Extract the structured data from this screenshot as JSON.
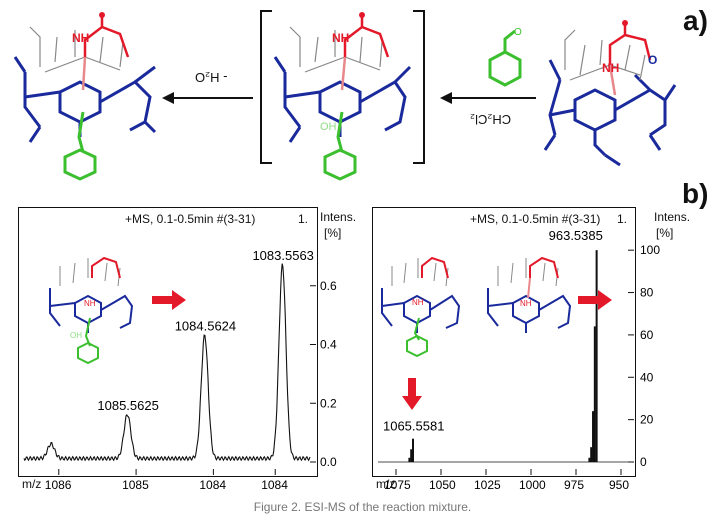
{
  "panel_a": {
    "label": "a)",
    "reagent_above": "",
    "solvent_label": "CH₂Cl₂",
    "elimination_label": "- H₂O",
    "nh_label": "NH",
    "oh_label": "OH"
  },
  "panel_b": {
    "label": "b)",
    "nh_label": "NH",
    "oh_label": "OH",
    "left_spectrum": {
      "header": "+MS, 0.1-0.5min #(3-31)",
      "ylabel": "Intens.",
      "yunit": "[%]",
      "ymax_text": "",
      "xlabel": "m/z",
      "top_right_value": "1.",
      "yticks": [
        "0.0",
        "0.2",
        "0.4",
        "0.6"
      ],
      "xticks": [
        "1086",
        "1085",
        "1084",
        "1084"
      ],
      "peaks": [
        "1083.5563",
        "1084.5624",
        "1085.5625"
      ]
    },
    "right_spectrum": {
      "header": "+MS, 0.1-0.5min #(3-31)",
      "ylabel": "Intens.",
      "yunit": "[%]",
      "xlabel": "m/z",
      "top_right_value": "1.",
      "yticks": [
        "0",
        "20",
        "40",
        "60",
        "80",
        "100"
      ],
      "xticks": [
        "950",
        "975",
        "1000",
        "1025",
        "1050",
        "1075"
      ],
      "peaks": [
        "963.5385",
        "1065.5581"
      ]
    }
  },
  "chart_data": [
    {
      "type": "line",
      "title": "+MS, 0.1-0.5min #(3-31)",
      "xlabel": "m/z",
      "ylabel": "Intens. [%]",
      "x_reversed": true,
      "ylim": [
        0,
        0.8
      ],
      "series": [
        {
          "x": [
            1083.5563,
            1084.5624,
            1085.5625,
            1086.55
          ],
          "y": [
            0.66,
            0.42,
            0.15,
            0.05
          ]
        }
      ],
      "annotations": [
        "1083.5563",
        "1084.5624",
        "1085.5625"
      ]
    },
    {
      "type": "bar",
      "title": "+MS, 0.1-0.5min #(3-31)",
      "xlabel": "m/z",
      "ylabel": "Intens. [%]",
      "x_reversed": true,
      "ylim": [
        0,
        110
      ],
      "series": [
        {
          "x": [
            963.5385,
            964.54,
            965.54,
            966.55,
            967.55,
            1065.5581,
            1066.56,
            1067.56
          ],
          "y": [
            100,
            64,
            24,
            7,
            2,
            11,
            6,
            2
          ]
        }
      ],
      "annotations": [
        "963.5385",
        "1065.5581"
      ]
    }
  ],
  "caption": "Figure 2. ESI-MS of the reaction mixture."
}
